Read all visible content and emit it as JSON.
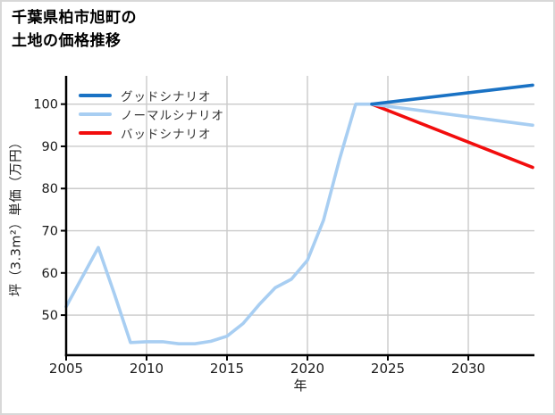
{
  "header": {
    "title_lines": [
      "千葉県柏市旭町の",
      "土地の価格推移"
    ]
  },
  "chart_data": {
    "type": "line",
    "title": "千葉県柏市旭町の土地の価格推移",
    "xlabel": "年",
    "ylabel": "坪（3.3m²）単価（万円）",
    "x_ticks": [
      2005,
      2010,
      2015,
      2020,
      2025,
      2030
    ],
    "y_ticks": [
      50,
      60,
      70,
      80,
      90,
      100
    ],
    "xlim": [
      2005,
      2034.1
    ],
    "ylim": [
      40.5,
      106.7
    ],
    "grid": true,
    "legend_position": "upper-left",
    "colors": {
      "good": "#1a72c4",
      "normal": "#a8cef2",
      "bad": "#f20d0d",
      "history": "#a8cef2",
      "gridline": "#cacaca",
      "axis": "#000000"
    },
    "history": {
      "x": [
        2005,
        2006,
        2007,
        2008,
        2009,
        2010,
        2011,
        2012,
        2013,
        2014,
        2015,
        2016,
        2017,
        2018,
        2019,
        2020,
        2021,
        2022,
        2023,
        2024
      ],
      "values": [
        52,
        59,
        66,
        55,
        43.5,
        43.7,
        43.7,
        43.2,
        43.2,
        43.8,
        45,
        48,
        52.5,
        56.5,
        58.5,
        63,
        72.5,
        87,
        100,
        100
      ]
    },
    "scenarios": [
      {
        "name": "グッドシナリオ",
        "key": "good",
        "color": "#1a72c4",
        "x": [
          2024,
          2034
        ],
        "values": [
          100,
          104.5
        ]
      },
      {
        "name": "ノーマルシナリオ",
        "key": "normal",
        "color": "#a8cef2",
        "x": [
          2024,
          2034
        ],
        "values": [
          100,
          95
        ]
      },
      {
        "name": "バッドシナリオ",
        "key": "bad",
        "color": "#f20d0d",
        "x": [
          2024,
          2034
        ],
        "values": [
          100,
          85
        ]
      }
    ]
  }
}
